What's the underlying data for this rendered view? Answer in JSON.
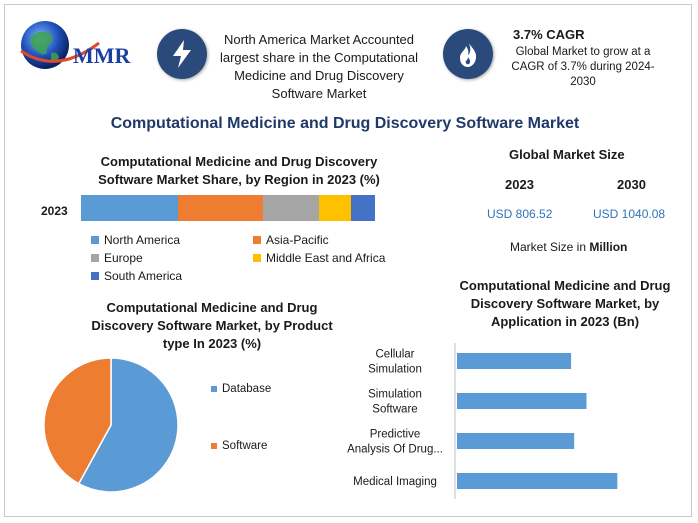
{
  "logo": {
    "text": "MMR"
  },
  "header": {
    "region_note": "North America Market Accounted largest share in the Computational Medicine and Drug Discovery Software Market",
    "cagr_title": "3.7% CAGR",
    "cagr_text": "Global Market to grow at a CAGR of 3.7% during 2024-2030",
    "bolt_icon": "lightning-icon",
    "flame_icon": "flame-icon"
  },
  "main_title": "Computational Medicine and Drug Discovery Software Market",
  "market_size": {
    "title": "Global Market Size",
    "year_a": "2023",
    "year_b": "2030",
    "value_a": "USD 806.52",
    "value_b": "USD 1040.08",
    "label_prefix": "Market Size in ",
    "label_unit": "Million"
  },
  "colors": {
    "north_america": "#5b9bd5",
    "asia_pacific": "#ed7d31",
    "europe": "#a5a5a5",
    "mea": "#ffc000",
    "south_america": "#4472c4",
    "icon_bg": "#2b4a7c",
    "title_blue": "#1f3a68",
    "value_blue": "#2e75b6"
  },
  "chart_data": [
    {
      "type": "bar",
      "orientation": "horizontal-stacked",
      "title": "Computational Medicine and Drug Discovery Software Market Share, by Region in 2023 (%)",
      "categories": [
        "2023"
      ],
      "series": [
        {
          "name": "North America",
          "values": [
            33
          ]
        },
        {
          "name": "Asia-Pacific",
          "values": [
            29
          ]
        },
        {
          "name": "Europe",
          "values": [
            19
          ]
        },
        {
          "name": "Middle East and Africa",
          "values": [
            11
          ]
        },
        {
          "name": "South America",
          "values": [
            8
          ]
        }
      ],
      "legend_position": "bottom"
    },
    {
      "type": "pie",
      "title": "Computational Medicine and Drug Discovery Software Market, by Product type In 2023 (%)",
      "categories": [
        "Database",
        "Software"
      ],
      "values": [
        58,
        42
      ],
      "legend_position": "right"
    },
    {
      "type": "bar",
      "orientation": "horizontal",
      "title": "Computational Medicine and Drug Discovery Software Market, by Application in 2023 (Bn)",
      "categories": [
        [
          "Cellular",
          "Simulation"
        ],
        [
          "Simulation",
          "Software"
        ],
        [
          "Predictive",
          "Analysis Of Drug..."
        ],
        [
          "Medical Imaging"
        ]
      ],
      "values": [
        0.185,
        0.21,
        0.19,
        0.26
      ],
      "xlim": [
        0,
        0.3
      ],
      "grid": false
    }
  ]
}
